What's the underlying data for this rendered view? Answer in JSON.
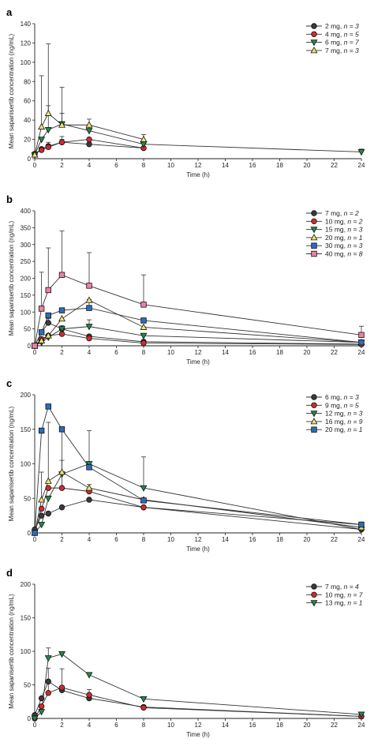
{
  "colors": {
    "black": "#3a3a3a",
    "red": "#d7282f",
    "green": "#1f8a4c",
    "yellow": "#f3e46b",
    "blue": "#2a6ebb",
    "pink": "#f07fa8"
  },
  "chart_data": [
    {
      "type": "line",
      "panel": "a",
      "xlabel": "Time (h)",
      "ylabel": "Mean sapanisertib concentration (ng/mL)",
      "xlim": [
        0,
        24
      ],
      "ylim": [
        0,
        140
      ],
      "xticks": [
        0,
        2,
        4,
        6,
        8,
        10,
        12,
        14,
        16,
        18,
        20,
        22,
        24
      ],
      "yticks": [
        0,
        20,
        40,
        60,
        80,
        100,
        120,
        140
      ],
      "legend_position": "top-right",
      "series": [
        {
          "name": "2 mg, ",
          "n": "n = 3",
          "color": "#3a3a3a",
          "marker": "circle",
          "x": [
            0,
            0.5,
            1,
            2,
            4,
            8
          ],
          "y": [
            5,
            10,
            13,
            17,
            15,
            11
          ],
          "err": [
            0,
            0,
            0,
            3,
            0,
            0
          ]
        },
        {
          "name": "4 mg, ",
          "n": "n = 5",
          "color": "#d7282f",
          "marker": "circle",
          "x": [
            0,
            0.5,
            1,
            2,
            4,
            8
          ],
          "y": [
            5,
            9,
            12,
            17,
            20,
            11
          ],
          "err": [
            0,
            0,
            5,
            6,
            0,
            0
          ]
        },
        {
          "name": "6 mg, ",
          "n": "n = 7",
          "color": "#1f8a4c",
          "marker": "triangle-down",
          "x": [
            0,
            0.5,
            1,
            2,
            4,
            8,
            24
          ],
          "y": [
            4,
            20,
            30,
            36,
            29,
            15,
            7
          ],
          "err": [
            0,
            0,
            25,
            38,
            5,
            0,
            3
          ]
        },
        {
          "name": "7 mg, ",
          "n": "n = 3",
          "color": "#f3e46b",
          "marker": "triangle-up",
          "x": [
            0,
            0.5,
            1,
            2,
            4,
            8
          ],
          "y": [
            4,
            33,
            47,
            35,
            35,
            20
          ],
          "err": [
            0,
            53,
            72,
            12,
            6,
            5
          ]
        }
      ]
    },
    {
      "type": "line",
      "panel": "b",
      "xlabel": "Time (h)",
      "ylabel": "Mean sapanisertib concentration (ng/mL)",
      "xlim": [
        0,
        24
      ],
      "ylim": [
        0,
        400
      ],
      "xticks": [
        0,
        2,
        4,
        6,
        8,
        10,
        12,
        14,
        16,
        18,
        20,
        22,
        24
      ],
      "yticks": [
        0,
        50,
        100,
        150,
        200,
        250,
        300,
        350,
        400
      ],
      "legend_position": "top-right",
      "series": [
        {
          "name": "7 mg, ",
          "n": "n = 2",
          "color": "#3a3a3a",
          "marker": "circle",
          "x": [
            0,
            0.5,
            1,
            2,
            4,
            8,
            24
          ],
          "y": [
            0,
            40,
            68,
            50,
            28,
            12,
            5
          ],
          "err": [
            0,
            0,
            12,
            0,
            0,
            0,
            0
          ]
        },
        {
          "name": "10 mg, ",
          "n": "n = 2",
          "color": "#d7282f",
          "marker": "circle",
          "x": [
            0,
            0.5,
            1,
            2,
            4,
            8,
            24
          ],
          "y": [
            0,
            20,
            30,
            35,
            22,
            8,
            4
          ],
          "err": [
            0,
            0,
            0,
            0,
            0,
            0,
            0
          ]
        },
        {
          "name": "15 mg, ",
          "n": "n = 3",
          "color": "#1f8a4c",
          "marker": "triangle-down",
          "x": [
            0,
            0.5,
            1,
            2,
            4,
            8,
            24
          ],
          "y": [
            0,
            10,
            25,
            50,
            57,
            30,
            10
          ],
          "err": [
            0,
            0,
            0,
            10,
            20,
            0,
            0
          ]
        },
        {
          "name": "20 mg, ",
          "n": "n = 1",
          "color": "#f3e46b",
          "marker": "triangle-up",
          "x": [
            0,
            0.5,
            1,
            2,
            4,
            8,
            24
          ],
          "y": [
            0,
            15,
            30,
            80,
            135,
            55,
            10
          ],
          "err": [
            0,
            0,
            0,
            0,
            0,
            0,
            0
          ]
        },
        {
          "name": "30 mg, ",
          "n": "n = 3",
          "color": "#2a6ebb",
          "marker": "square",
          "x": [
            0,
            0.5,
            1,
            2,
            4,
            8,
            24
          ],
          "y": [
            0,
            40,
            90,
            105,
            112,
            75,
            10
          ],
          "err": [
            0,
            0,
            0,
            0,
            25,
            0,
            0
          ]
        },
        {
          "name": "40 mg, ",
          "n": "n = 8",
          "color": "#f07fa8",
          "marker": "square",
          "x": [
            0,
            0.5,
            1,
            2,
            4,
            8,
            24
          ],
          "y": [
            0,
            110,
            165,
            210,
            178,
            122,
            32
          ],
          "err": [
            0,
            108,
            125,
            130,
            98,
            88,
            26
          ]
        }
      ]
    },
    {
      "type": "line",
      "panel": "c",
      "xlabel": "Time (h)",
      "ylabel": "Mean sapanisertib concentration (ng/mL)",
      "xlim": [
        0,
        24
      ],
      "ylim": [
        0,
        200
      ],
      "xticks": [
        0,
        2,
        4,
        6,
        8,
        10,
        12,
        14,
        16,
        18,
        20,
        22,
        24
      ],
      "yticks": [
        0,
        50,
        100,
        150,
        200
      ],
      "legend_position": "top-right",
      "series": [
        {
          "name": "6 mg, ",
          "n": "n = 3",
          "color": "#3a3a3a",
          "marker": "circle",
          "x": [
            0,
            0.5,
            1,
            2,
            4,
            8,
            24
          ],
          "y": [
            5,
            25,
            28,
            37,
            48,
            37,
            12
          ],
          "err": [
            0,
            0,
            0,
            0,
            0,
            0,
            0
          ]
        },
        {
          "name": "9 mg, ",
          "n": "n = 5",
          "color": "#d7282f",
          "marker": "circle",
          "x": [
            0,
            0.5,
            1,
            2,
            4,
            8,
            24
          ],
          "y": [
            0,
            35,
            65,
            65,
            60,
            37,
            5
          ],
          "err": [
            0,
            0,
            0,
            20,
            10,
            0,
            0
          ]
        },
        {
          "name": "12 mg, ",
          "n": "n = 3",
          "color": "#1f8a4c",
          "marker": "triangle-down",
          "x": [
            0,
            0.5,
            1,
            2,
            4,
            8,
            24
          ],
          "y": [
            0,
            12,
            50,
            85,
            100,
            65,
            5
          ],
          "err": [
            0,
            0,
            0,
            20,
            48,
            45,
            10
          ]
        },
        {
          "name": "16 mg, ",
          "n": "n = 9",
          "color": "#f3e46b",
          "marker": "triangle-up",
          "x": [
            0,
            0.5,
            1,
            2,
            4,
            8,
            24
          ],
          "y": [
            0,
            48,
            75,
            88,
            65,
            48,
            8
          ],
          "err": [
            0,
            40,
            85,
            62,
            0,
            0,
            0
          ]
        },
        {
          "name": "20 mg, ",
          "n": "n = 1",
          "color": "#2a6ebb",
          "marker": "square",
          "x": [
            0,
            0.5,
            1,
            2,
            4,
            8,
            24
          ],
          "y": [
            0,
            148,
            183,
            150,
            95,
            47,
            12
          ],
          "err": [
            0,
            0,
            0,
            0,
            0,
            0,
            0
          ]
        }
      ]
    },
    {
      "type": "line",
      "panel": "d",
      "xlabel": "Time (h)",
      "ylabel": "Mean sapanisertib concentration (ng/mL)",
      "xlim": [
        0,
        24
      ],
      "ylim": [
        0,
        200
      ],
      "xticks": [
        0,
        2,
        4,
        6,
        8,
        10,
        12,
        14,
        16,
        18,
        20,
        22,
        24
      ],
      "yticks": [
        0,
        50,
        100,
        150,
        200
      ],
      "legend_position": "top-right",
      "series": [
        {
          "name": "7 mg, ",
          "n": "n = 4",
          "color": "#3a3a3a",
          "marker": "circle",
          "x": [
            0,
            0.5,
            1,
            2,
            4,
            8,
            24
          ],
          "y": [
            5,
            30,
            55,
            42,
            30,
            17,
            3
          ],
          "err": [
            0,
            0,
            0,
            0,
            0,
            0,
            0
          ]
        },
        {
          "name": "10 mg, ",
          "n": "n = 7",
          "color": "#d7282f",
          "marker": "circle",
          "x": [
            0,
            0.5,
            1,
            2,
            4,
            8,
            24
          ],
          "y": [
            0,
            18,
            38,
            46,
            35,
            16,
            3
          ],
          "err": [
            0,
            0,
            37,
            28,
            8,
            0,
            0
          ]
        },
        {
          "name": "13 mg, ",
          "n": "n = 1",
          "color": "#1f8a4c",
          "marker": "triangle-down",
          "x": [
            0,
            0.5,
            1,
            2,
            4,
            8,
            24
          ],
          "y": [
            0,
            10,
            90,
            96,
            65,
            29,
            6
          ],
          "err": [
            0,
            0,
            15,
            0,
            0,
            0,
            0
          ]
        }
      ]
    }
  ]
}
